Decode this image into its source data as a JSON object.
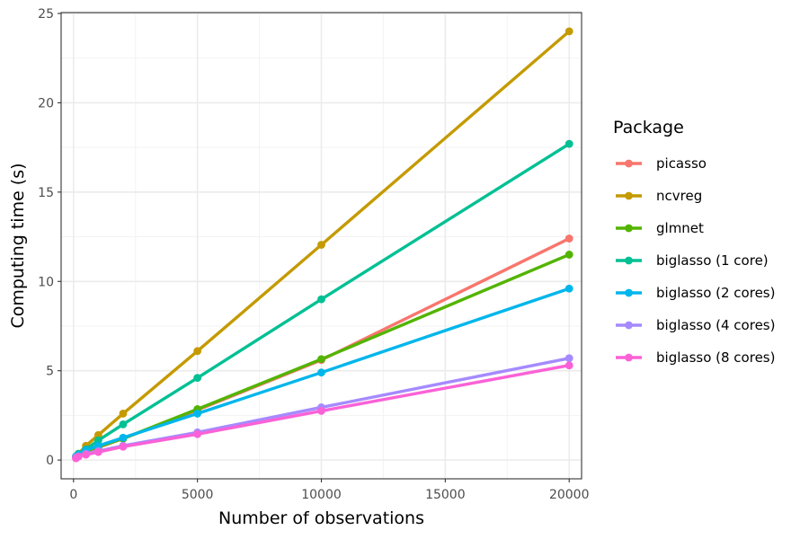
{
  "chart_data": {
    "type": "line",
    "xlabel": "Number of observations",
    "ylabel": "Computing time (s)",
    "xlim": [
      -500,
      20500
    ],
    "ylim": [
      -1.05,
      25.05
    ],
    "x_ticks": [
      0,
      5000,
      10000,
      15000,
      20000
    ],
    "x_tick_labels": [
      "0",
      "5000",
      "10000",
      "15000",
      "20000"
    ],
    "y_ticks": [
      0,
      5,
      10,
      15,
      20,
      25
    ],
    "y_tick_labels": [
      "0",
      "5",
      "10",
      "15",
      "20",
      "25"
    ],
    "x_minor_ticks": [
      2500,
      7500,
      12500,
      17500
    ],
    "y_minor_ticks": [
      2.5,
      7.5,
      12.5,
      17.5,
      22.5
    ],
    "grid": true,
    "legend_title": "Package",
    "legend_position": "right",
    "x": [
      100,
      200,
      500,
      1000,
      2000,
      5000,
      10000,
      20000
    ],
    "series": [
      {
        "name": "picasso",
        "color": "#F8766D",
        "values": [
          0.15,
          0.25,
          0.45,
          0.7,
          1.2,
          2.8,
          5.6,
          12.4
        ]
      },
      {
        "name": "ncvreg",
        "color": "#C49A00",
        "values": [
          0.2,
          0.35,
          0.8,
          1.4,
          2.6,
          6.1,
          12.05,
          24.0
        ]
      },
      {
        "name": "glmnet",
        "color": "#53B400",
        "values": [
          0.15,
          0.25,
          0.5,
          0.75,
          1.2,
          2.85,
          5.65,
          11.5
        ]
      },
      {
        "name": "biglasso (1 core)",
        "color": "#00C094",
        "values": [
          0.2,
          0.35,
          0.6,
          1.1,
          2.0,
          4.6,
          9.0,
          17.7
        ]
      },
      {
        "name": "biglasso (2 cores)",
        "color": "#00B6EB",
        "values": [
          0.2,
          0.3,
          0.55,
          0.8,
          1.25,
          2.6,
          4.9,
          9.6
        ]
      },
      {
        "name": "biglasso (4 cores)",
        "color": "#A58AFF",
        "values": [
          0.15,
          0.2,
          0.35,
          0.5,
          0.8,
          1.55,
          2.95,
          5.7
        ]
      },
      {
        "name": "biglasso (8 cores)",
        "color": "#FB61D7",
        "values": [
          0.1,
          0.2,
          0.3,
          0.45,
          0.75,
          1.45,
          2.75,
          5.3
        ]
      }
    ]
  }
}
